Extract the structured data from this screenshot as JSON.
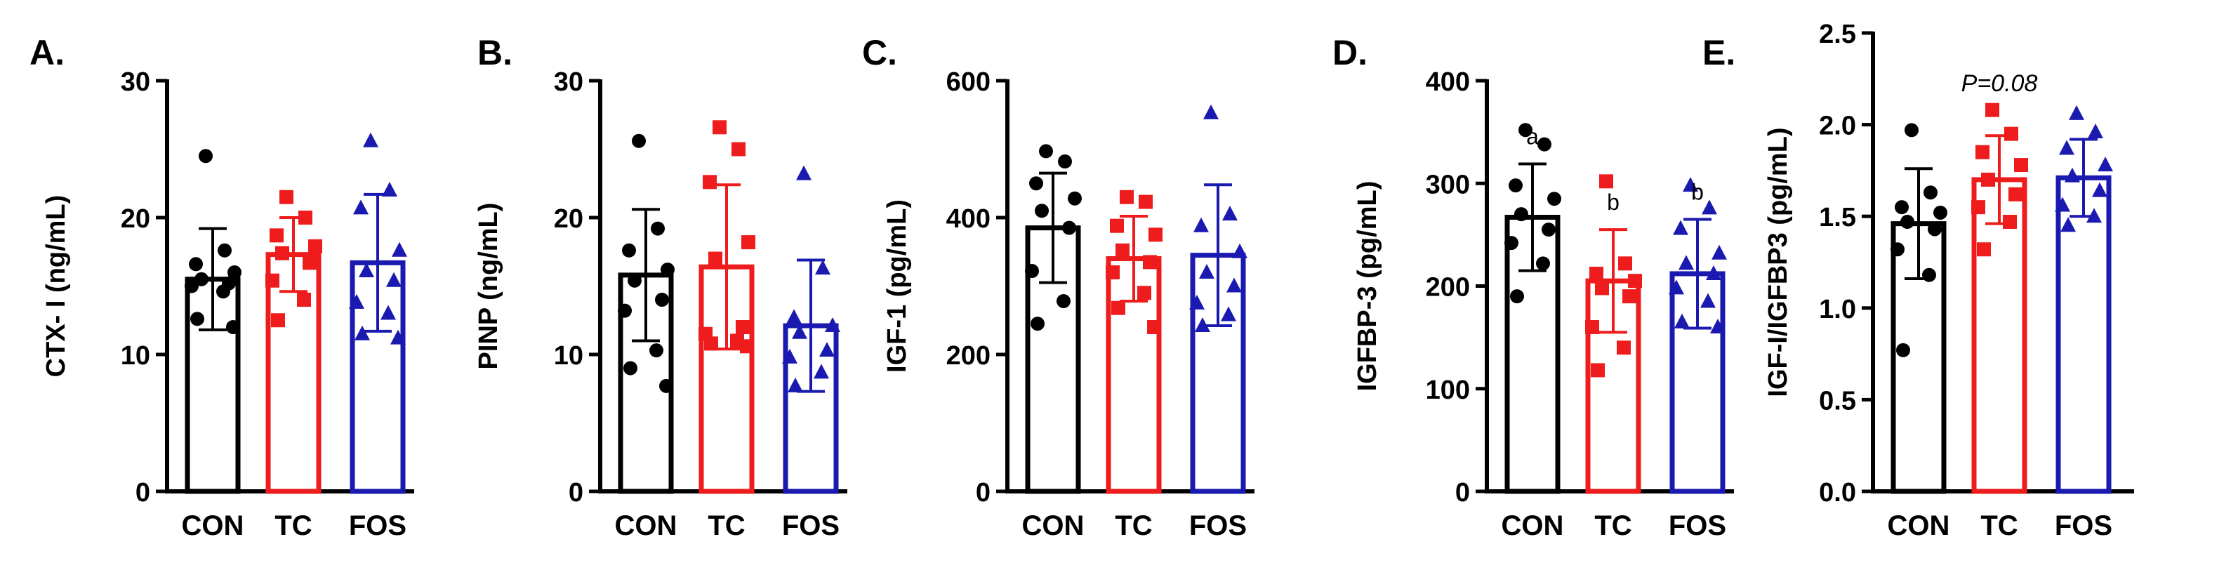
{
  "chart_data": [
    {
      "panel_label": "A.",
      "type": "bar",
      "categories": [
        "CON",
        "TC",
        "FOS"
      ],
      "ylabel": "CTX- I (ng/mL)",
      "ylim": [
        0,
        30
      ],
      "yticks": [
        0,
        10,
        20,
        30
      ],
      "series": [
        {
          "group": "CON",
          "color": "#000000",
          "marker": "circle",
          "mean": 15.5,
          "sd": 3.7,
          "points": [
            24.5,
            17.6,
            16.6,
            16.0,
            15.5,
            15.2,
            15.0,
            14.6,
            12.6,
            12.0
          ]
        },
        {
          "group": "TC",
          "color": "#ee1c1c",
          "marker": "square",
          "mean": 17.3,
          "sd": 2.7,
          "points": [
            21.5,
            20.0,
            18.7,
            17.9,
            17.4,
            16.7,
            15.4,
            14.0,
            12.5
          ]
        },
        {
          "group": "FOS",
          "color": "#1a1ab0",
          "marker": "triangle",
          "mean": 16.7,
          "sd": 5.0,
          "points": [
            25.6,
            22.0,
            20.7,
            17.6,
            16.1,
            15.4,
            13.8,
            13.0,
            11.5,
            11.2
          ]
        }
      ],
      "annotations": []
    },
    {
      "panel_label": "B.",
      "type": "bar",
      "categories": [
        "CON",
        "TC",
        "FOS"
      ],
      "ylabel": "PINP (ng/mL)",
      "ylim": [
        0,
        30
      ],
      "yticks": [
        0,
        10,
        20,
        30
      ],
      "series": [
        {
          "group": "CON",
          "color": "#000000",
          "marker": "circle",
          "mean": 15.8,
          "sd": 4.8,
          "points": [
            25.6,
            19.2,
            17.6,
            16.2,
            15.4,
            14.0,
            13.2,
            10.3,
            9.0,
            7.7
          ]
        },
        {
          "group": "TC",
          "color": "#ee1c1c",
          "marker": "square",
          "mean": 16.4,
          "sd": 6.0,
          "points": [
            26.6,
            25.0,
            22.6,
            18.2,
            17.0,
            12.0,
            11.5,
            11.0,
            10.8,
            10.6
          ]
        },
        {
          "group": "FOS",
          "color": "#1a1ab0",
          "marker": "triangle",
          "mean": 12.1,
          "sd": 4.8,
          "points": [
            23.2,
            16.3,
            12.7,
            12.1,
            11.6,
            10.3,
            9.8,
            8.7,
            7.7
          ]
        }
      ],
      "annotations": []
    },
    {
      "panel_label": "C.",
      "type": "bar",
      "categories": [
        "CON",
        "TC",
        "FOS"
      ],
      "ylabel": "IGF-1 (pg/mL)",
      "ylim": [
        0,
        600
      ],
      "yticks": [
        0,
        200,
        400,
        600
      ],
      "series": [
        {
          "group": "CON",
          "color": "#000000",
          "marker": "circle",
          "mean": 385,
          "sd": 80,
          "points": [
            497,
            482,
            450,
            428,
            410,
            385,
            322,
            278,
            245
          ]
        },
        {
          "group": "TC",
          "color": "#ee1c1c",
          "marker": "square",
          "mean": 340,
          "sd": 62,
          "points": [
            430,
            423,
            388,
            375,
            352,
            335,
            320,
            290,
            268,
            240
          ]
        },
        {
          "group": "FOS",
          "color": "#1a1ab0",
          "marker": "triangle",
          "mean": 345,
          "sd": 103,
          "points": [
            553,
            405,
            388,
            350,
            320,
            300,
            275,
            258,
            242
          ]
        }
      ],
      "annotations": []
    },
    {
      "panel_label": "D.",
      "type": "bar",
      "categories": [
        "CON",
        "TC",
        "FOS"
      ],
      "ylabel": "IGFBP-3 (pg/mL)",
      "ylim": [
        0,
        400
      ],
      "yticks": [
        0,
        100,
        200,
        300,
        400
      ],
      "series": [
        {
          "group": "CON",
          "color": "#000000",
          "marker": "circle",
          "mean": 267,
          "sd": 52,
          "points": [
            352,
            338,
            298,
            285,
            270,
            255,
            242,
            222,
            190
          ]
        },
        {
          "group": "TC",
          "color": "#ee1c1c",
          "marker": "square",
          "mean": 205,
          "sd": 50,
          "points": [
            302,
            222,
            212,
            205,
            198,
            190,
            160,
            140,
            118
          ]
        },
        {
          "group": "FOS",
          "color": "#1a1ab0",
          "marker": "triangle",
          "mean": 212,
          "sd": 53,
          "points": [
            298,
            276,
            256,
            232,
            222,
            212,
            198,
            185,
            165,
            160
          ]
        }
      ],
      "annotations": [
        "a",
        "b",
        "b"
      ]
    },
    {
      "panel_label": "E.",
      "type": "bar",
      "categories": [
        "CON",
        "TC",
        "FOS"
      ],
      "ylabel": "IGF-I/IGFBP3 (pg/mL)",
      "ylim": [
        0,
        2.5
      ],
      "yticks": [
        "0.0",
        "0.5",
        "1.0",
        "1.5",
        "2.0",
        "2.5"
      ],
      "series": [
        {
          "group": "CON",
          "color": "#000000",
          "marker": "circle",
          "mean": 1.46,
          "sd": 0.3,
          "points": [
            1.97,
            1.63,
            1.55,
            1.52,
            1.47,
            1.43,
            1.32,
            1.18,
            0.77
          ]
        },
        {
          "group": "TC",
          "color": "#ee1c1c",
          "marker": "square",
          "mean": 1.7,
          "sd": 0.24,
          "points": [
            2.08,
            1.95,
            1.85,
            1.78,
            1.7,
            1.62,
            1.55,
            1.47,
            1.32
          ]
        },
        {
          "group": "FOS",
          "color": "#1a1ab0",
          "marker": "triangle",
          "mean": 1.71,
          "sd": 0.21,
          "points": [
            2.06,
            1.96,
            1.87,
            1.78,
            1.72,
            1.64,
            1.56,
            1.5,
            1.45
          ]
        }
      ],
      "annotations": [],
      "note": "P=0.08"
    }
  ]
}
